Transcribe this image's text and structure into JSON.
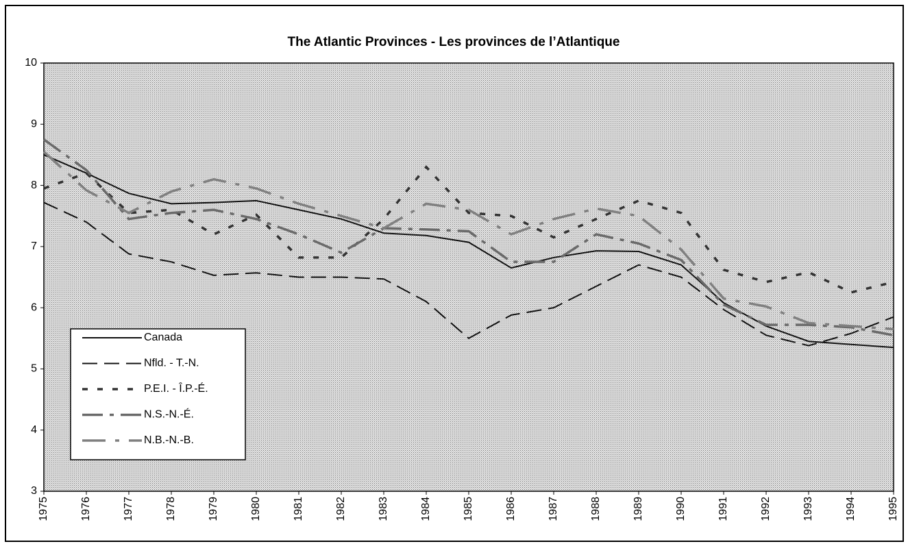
{
  "chart_data": {
    "type": "line",
    "title": "The Atlantic Provinces - Les provinces de l’Atlantique",
    "categories": [
      "1975",
      "1976",
      "1977",
      "1978",
      "1979",
      "1980",
      "1981",
      "1982",
      "1983",
      "1984",
      "1985",
      "1986",
      "1987",
      "1988",
      "1989",
      "1990",
      "1991",
      "1992",
      "1993",
      "1994",
      "1995"
    ],
    "ylim": [
      3,
      10
    ],
    "yticks": [
      3,
      4,
      5,
      6,
      7,
      8,
      9,
      10
    ],
    "legend": "lower-left",
    "series": [
      {
        "name": "Canada",
        "color": "#111111",
        "dash": "none",
        "values": [
          8.5,
          8.2,
          7.87,
          7.7,
          7.72,
          7.75,
          7.6,
          7.45,
          7.22,
          7.18,
          7.07,
          6.65,
          6.82,
          6.93,
          6.92,
          6.7,
          6.08,
          5.7,
          5.45,
          5.4,
          5.35
        ]
      },
      {
        "name": "Nfld. - T.-N.",
        "color": "#111111",
        "dash": "22 10",
        "values": [
          7.72,
          7.4,
          6.88,
          6.75,
          6.53,
          6.57,
          6.5,
          6.5,
          6.47,
          6.1,
          5.5,
          5.88,
          6.0,
          6.35,
          6.7,
          6.5,
          5.97,
          5.55,
          5.38,
          5.58,
          5.85
        ]
      },
      {
        "name": "P.E.I. - Î.P.-É.",
        "color": "#333333",
        "dash": "8 14",
        "values": [
          7.95,
          8.2,
          7.55,
          7.6,
          7.2,
          7.52,
          6.82,
          6.82,
          7.45,
          8.3,
          7.55,
          7.5,
          7.15,
          7.45,
          7.75,
          7.55,
          6.62,
          6.42,
          6.58,
          6.25,
          6.42
        ]
      },
      {
        "name": "N.S.-N.-É.",
        "color": "#6a6a6a",
        "dash": "30 10 6 10",
        "values": [
          8.75,
          8.25,
          7.45,
          7.55,
          7.6,
          7.45,
          7.2,
          6.9,
          7.3,
          7.28,
          7.25,
          6.75,
          6.75,
          7.2,
          7.05,
          6.78,
          6.05,
          5.72,
          5.72,
          5.68,
          5.55
        ]
      },
      {
        "name": "N.B.-N.-B.",
        "color": "#808080",
        "dash": "34 14 6 14",
        "values": [
          8.55,
          7.92,
          7.55,
          7.9,
          8.1,
          7.95,
          7.7,
          7.5,
          7.3,
          7.7,
          7.6,
          7.2,
          7.45,
          7.62,
          7.5,
          6.95,
          6.15,
          6.02,
          5.75,
          5.7,
          5.65
        ]
      }
    ]
  }
}
